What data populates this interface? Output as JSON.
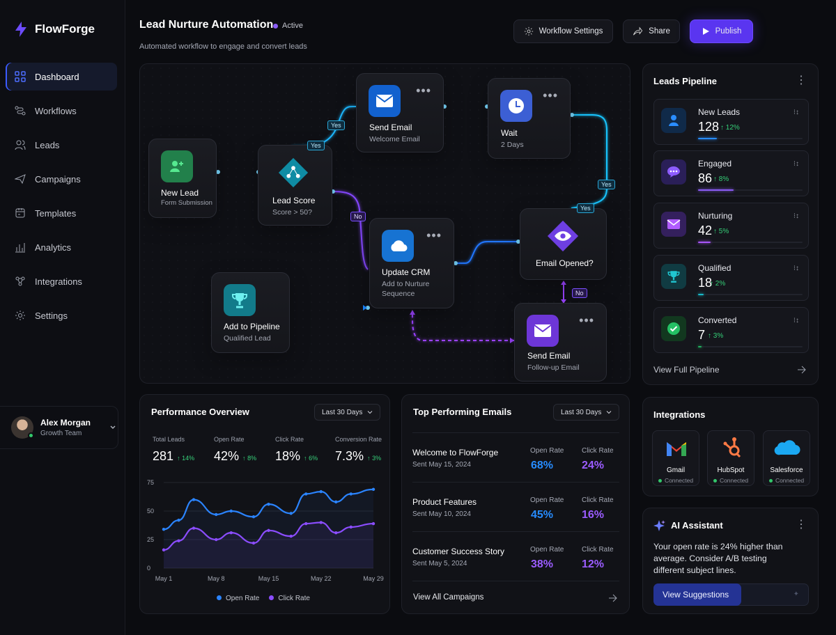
{
  "app": {
    "name": "FlowForge",
    "logo_icon": "bolt-icon"
  },
  "sidebar": {
    "items": [
      {
        "label": "Dashboard",
        "icon": "dashboard-icon",
        "active": true
      },
      {
        "label": "Workflows",
        "icon": "workflow-icon",
        "active": false
      },
      {
        "label": "Leads",
        "icon": "users-icon",
        "active": false
      },
      {
        "label": "Campaigns",
        "icon": "campaign-icon",
        "active": false
      },
      {
        "label": "Templates",
        "icon": "template-icon",
        "active": false
      },
      {
        "label": "Analytics",
        "icon": "analytics-icon",
        "active": false
      },
      {
        "label": "Integrations",
        "icon": "integrations-icon",
        "active": false
      },
      {
        "label": "Settings",
        "icon": "settings-icon",
        "active": false
      }
    ],
    "user": {
      "name": "Alex Morgan",
      "role": "Growth Team"
    }
  },
  "header": {
    "title": "Lead Nurture Automation",
    "status": "Active",
    "subtitle": "Automated workflow to engage and convert leads",
    "buttons": {
      "settings": "Workflow Settings",
      "share": "Share",
      "publish": "Publish"
    }
  },
  "workflow": {
    "nodes": [
      {
        "title": "New Lead",
        "sub": "Form Submission",
        "icon": "user-plus-icon"
      },
      {
        "title": "Lead Score",
        "sub": "Score > 50?",
        "icon": "decision-icon"
      },
      {
        "title": "Send Email",
        "sub": "Welcome Email",
        "icon": "mail-icon"
      },
      {
        "title": "Wait",
        "sub": "2 Days",
        "icon": "clock-icon"
      },
      {
        "title": "Update CRM",
        "sub": "Add to Nurture Sequence",
        "icon": "cloud-icon"
      },
      {
        "title": "Email Opened?",
        "sub": "",
        "icon": "eye-icon"
      },
      {
        "title": "Add to Pipeline",
        "sub": "Qualified Lead",
        "icon": "trophy-icon"
      },
      {
        "title": "Send Email",
        "sub": "Follow-up Email",
        "icon": "mail-icon"
      }
    ],
    "labels": {
      "yes": "Yes",
      "no": "No"
    }
  },
  "performance": {
    "title": "Performance Overview",
    "range": "Last 30 Days",
    "metrics": [
      {
        "label": "Total Leads",
        "value": "281",
        "change": "14%"
      },
      {
        "label": "Open Rate",
        "value": "42%",
        "change": "8%"
      },
      {
        "label": "Click Rate",
        "value": "18%",
        "change": "6%"
      },
      {
        "label": "Conversion Rate",
        "value": "7.3%",
        "change": "3%"
      }
    ],
    "legend": {
      "open": "Open Rate",
      "click": "Click Rate"
    }
  },
  "chart_data": {
    "type": "line",
    "categories": [
      "May 1",
      "May 8",
      "May 15",
      "May 22",
      "May 29"
    ],
    "x": [
      1,
      3,
      5,
      8,
      10,
      13,
      15,
      18,
      20,
      22,
      24,
      26,
      29
    ],
    "series": [
      {
        "name": "Open Rate",
        "values": [
          34,
          42,
          60,
          47,
          50,
          45,
          56,
          48,
          65,
          67,
          58,
          65,
          69
        ],
        "color": "#2b84ff"
      },
      {
        "name": "Click Rate",
        "values": [
          16,
          24,
          35,
          25,
          31,
          22,
          33,
          28,
          39,
          40,
          31,
          36,
          39
        ],
        "color": "#8b4dff"
      }
    ],
    "yticks": [
      0,
      25,
      50,
      75
    ],
    "ylim": [
      0,
      75
    ],
    "grid": true,
    "legend": "bottom"
  },
  "emails": {
    "title": "Top Performing Emails",
    "range": "Last 30 Days",
    "column_open": "Open Rate",
    "column_click": "Click Rate",
    "rows": [
      {
        "title": "Welcome to FlowForge",
        "date": "Sent May 15, 2024",
        "open": "68%",
        "click": "24%"
      },
      {
        "title": "Product Features",
        "date": "Sent May 10, 2024",
        "open": "45%",
        "click": "16%"
      },
      {
        "title": "Customer Success Story",
        "date": "Sent May 5, 2024",
        "open": "38%",
        "click": "12%"
      }
    ],
    "footer": "View All Campaigns"
  },
  "pipeline": {
    "title": "Leads Pipeline",
    "items": [
      {
        "label": "New Leads",
        "value": "128",
        "change": "12%",
        "progress": 0.18,
        "color": "#278cff",
        "icon": "person-icon"
      },
      {
        "label": "Engaged",
        "value": "86",
        "change": "8%",
        "progress": 0.34,
        "color": "#8b5cf6",
        "icon": "chat-icon"
      },
      {
        "label": "Nurturing",
        "value": "42",
        "change": "5%",
        "progress": 0.12,
        "color": "#a855f7",
        "icon": "mail-icon"
      },
      {
        "label": "Qualified",
        "value": "18",
        "change": "2%",
        "progress": 0.05,
        "color": "#19b8c8",
        "icon": "trophy-icon"
      },
      {
        "label": "Converted",
        "value": "7",
        "change": "3%",
        "progress": 0.03,
        "color": "#21b15f",
        "icon": "check-icon"
      }
    ],
    "footer": "View Full Pipeline"
  },
  "integrations": {
    "title": "Integrations",
    "items": [
      {
        "name": "Gmail",
        "status": "Connected",
        "icon": "gmail-icon"
      },
      {
        "name": "HubSpot",
        "status": "Connected",
        "icon": "hubspot-icon"
      },
      {
        "name": "Salesforce",
        "status": "Connected",
        "icon": "salesforce-icon"
      }
    ]
  },
  "ai": {
    "title": "AI Assistant",
    "message": "Your open rate is 24% higher than average. Consider A/B testing different subject lines.",
    "button": "View Suggestions"
  }
}
